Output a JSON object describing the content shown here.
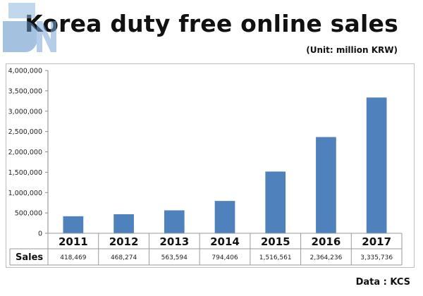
{
  "title": "Korea duty free online sales",
  "unit": "(Unit: million KRW)",
  "source": "Data : KCS",
  "chart_data": {
    "type": "bar",
    "categories": [
      "2011",
      "2012",
      "2013",
      "2014",
      "2015",
      "2016",
      "2017"
    ],
    "series": [
      {
        "name": "Sales",
        "values": [
          418469,
          468274,
          563594,
          794406,
          1516561,
          2364236,
          3335736
        ],
        "value_labels": [
          "418,469",
          "468,274",
          "563,594",
          "794,406",
          "1,516,561",
          "2,364,236",
          "3,335,736"
        ]
      }
    ],
    "yticks": [
      0,
      500000,
      1000000,
      1500000,
      2000000,
      2500000,
      3000000,
      3500000,
      4000000
    ],
    "ytick_labels": [
      "0",
      "500,000",
      "1,000,000",
      "1,500,000",
      "2,000,000",
      "2,500,000",
      "3,000,000",
      "3,500,000",
      "4,000,000"
    ],
    "ylim": [
      0,
      4000000
    ],
    "table_row_label": "Sales",
    "grid": false,
    "bar_color": "#4f81bd"
  }
}
